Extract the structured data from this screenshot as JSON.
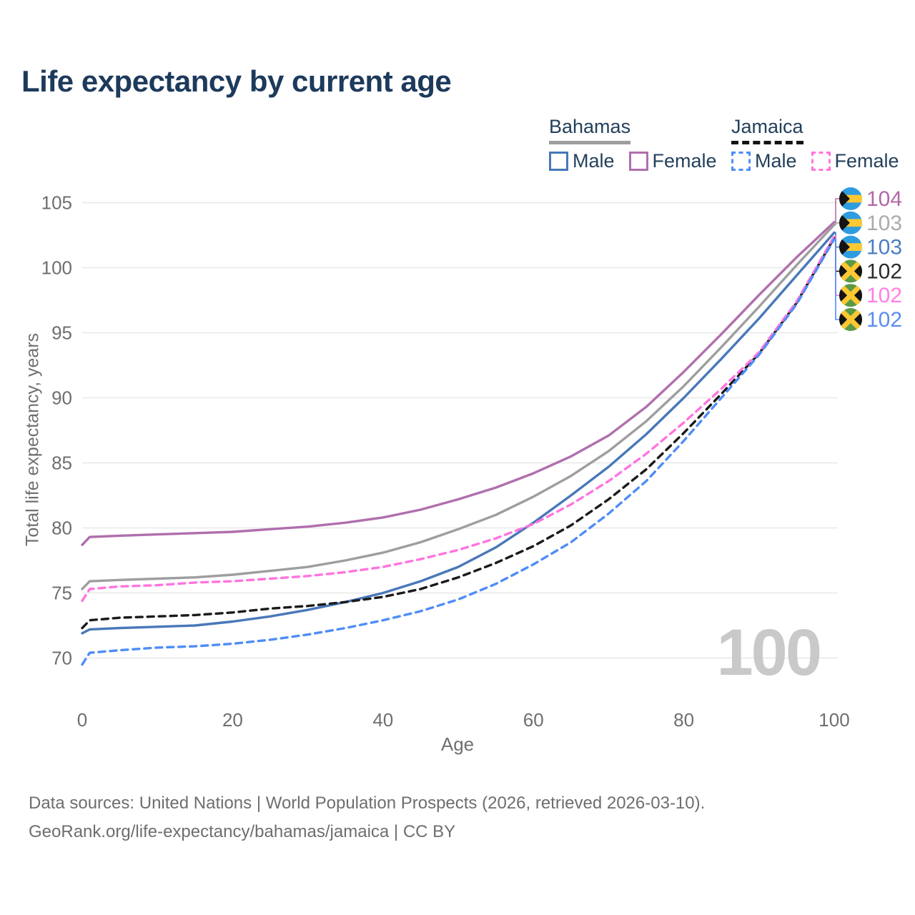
{
  "footer": {
    "line1": "Data sources: United Nations | World Population Prospects (2026, retrieved 2026-03-10).",
    "line2": "GeoRank.org/life-expectancy/bahamas/jamaica | CC BY"
  },
  "legend": {
    "position": "top-right",
    "groups": [
      {
        "country": "Bahamas",
        "line_style": "solid",
        "underline_color": "#9e9e9e",
        "items": [
          {
            "label": "Male",
            "color": "#4878b8",
            "dashed": false
          },
          {
            "label": "Female",
            "color": "#b06fad",
            "dashed": false
          }
        ]
      },
      {
        "country": "Jamaica",
        "line_style": "dashed",
        "underline_color": "#141414",
        "items": [
          {
            "label": "Male",
            "color": "#4f8df7",
            "dashed": true
          },
          {
            "label": "Female",
            "color": "#ff74de",
            "dashed": true
          }
        ]
      }
    ]
  },
  "chart_data": {
    "type": "line",
    "title": "Life expectancy by current age",
    "xlabel": "Age",
    "ylabel": "Total life expectancy, years",
    "xlim": [
      0,
      100
    ],
    "ylim": [
      68.5,
      105
    ],
    "x_ticks": [
      0,
      20,
      40,
      60,
      80,
      100
    ],
    "y_ticks": [
      70,
      75,
      80,
      85,
      90,
      95,
      100,
      105
    ],
    "grid": "horizontal",
    "legend_position": "top-right",
    "watermark": "100",
    "watermark_color": "#c9c9c9",
    "gridline_color": "#e8e8e8",
    "tick_label_color": "#6f6f6f",
    "x": [
      0,
      1,
      5,
      10,
      15,
      20,
      25,
      30,
      35,
      40,
      45,
      50,
      55,
      60,
      65,
      70,
      75,
      80,
      85,
      90,
      95,
      100
    ],
    "series": [
      {
        "name": "Bahamas Female",
        "country": "Bahamas",
        "sex": "Female",
        "flag": "bahamas",
        "style": "solid",
        "color": "#b06fad",
        "end_label": "104",
        "end_label_color": "#b168a8",
        "values": [
          78.7,
          79.3,
          79.4,
          79.5,
          79.6,
          79.7,
          79.9,
          80.1,
          80.4,
          80.8,
          81.4,
          82.2,
          83.1,
          84.2,
          85.5,
          87.1,
          89.3,
          92.0,
          94.9,
          97.9,
          100.8,
          103.5
        ]
      },
      {
        "name": "Bahamas Both sexes",
        "country": "Bahamas",
        "sex": "Both",
        "flag": "bahamas",
        "style": "solid",
        "color": "#9e9e9e",
        "end_label": "103",
        "end_label_color": "#ababab",
        "values": [
          75.3,
          75.9,
          76.0,
          76.1,
          76.2,
          76.4,
          76.7,
          77.0,
          77.5,
          78.1,
          78.9,
          79.9,
          81.0,
          82.4,
          84.0,
          85.9,
          88.2,
          90.9,
          93.9,
          97.0,
          100.2,
          103.3
        ]
      },
      {
        "name": "Bahamas Male",
        "country": "Bahamas",
        "sex": "Male",
        "flag": "bahamas",
        "style": "solid",
        "color": "#4878b8",
        "end_label": "103",
        "end_label_color": "#4a7fc1",
        "values": [
          71.9,
          72.2,
          72.3,
          72.4,
          72.5,
          72.8,
          73.2,
          73.7,
          74.3,
          75.0,
          75.9,
          77.0,
          78.5,
          80.4,
          82.5,
          84.7,
          87.2,
          90.0,
          93.0,
          96.1,
          99.4,
          102.7
        ]
      },
      {
        "name": "Jamaica Both sexes",
        "country": "Jamaica",
        "sex": "Both",
        "flag": "jamaica",
        "style": "dashed",
        "color": "#1a1a1a",
        "end_label": "102",
        "end_label_color": "#2b2b2b",
        "values": [
          72.3,
          72.9,
          73.1,
          73.2,
          73.3,
          73.5,
          73.8,
          74.0,
          74.3,
          74.7,
          75.3,
          76.2,
          77.3,
          78.6,
          80.2,
          82.2,
          84.5,
          87.3,
          90.3,
          93.4,
          97.3,
          102.3
        ]
      },
      {
        "name": "Jamaica Female",
        "country": "Jamaica",
        "sex": "Female",
        "flag": "jamaica",
        "style": "dashed",
        "color": "#ff74de",
        "end_label": "102",
        "end_label_color": "#ff80e5",
        "values": [
          74.4,
          75.3,
          75.5,
          75.6,
          75.8,
          75.9,
          76.1,
          76.3,
          76.6,
          77.0,
          77.6,
          78.3,
          79.2,
          80.3,
          81.8,
          83.6,
          85.7,
          88.1,
          90.7,
          93.5,
          97.4,
          102.4
        ]
      },
      {
        "name": "Jamaica Male",
        "country": "Jamaica",
        "sex": "Male",
        "flag": "jamaica",
        "style": "dashed",
        "color": "#4f8df7",
        "end_label": "102",
        "end_label_color": "#5b8def",
        "values": [
          69.5,
          70.4,
          70.6,
          70.8,
          70.9,
          71.1,
          71.4,
          71.8,
          72.3,
          72.9,
          73.6,
          74.5,
          75.7,
          77.2,
          78.9,
          81.1,
          83.6,
          86.7,
          90.0,
          93.3,
          97.2,
          102.2
        ]
      }
    ]
  }
}
